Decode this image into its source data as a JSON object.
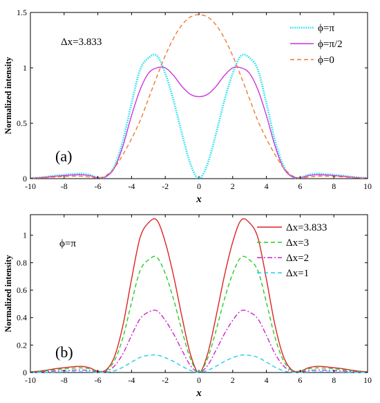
{
  "chart_data": [
    {
      "type": "line",
      "panel_label": "(a)",
      "annotation": "Δx=3.833",
      "xlabel": "x",
      "ylabel": "Normalized intensity",
      "xlim": [
        -10,
        10
      ],
      "ylim": [
        0,
        1.5
      ],
      "xticks": [
        -10,
        -8,
        -6,
        -4,
        -2,
        0,
        2,
        4,
        6,
        8,
        10
      ],
      "yticks": [
        0,
        0.5,
        1,
        1.5
      ],
      "ytick_labels": [
        "0",
        "0.5",
        "1",
        "1.5"
      ],
      "legend_position": "top-right",
      "x": [
        -10,
        -9.5,
        -9,
        -8.5,
        -8,
        -7.5,
        -7,
        -6.5,
        -6,
        -5.5,
        -5,
        -4.5,
        -4,
        -3.5,
        -3,
        -2.5,
        -2,
        -1.5,
        -1,
        -0.5,
        0,
        0.5,
        1,
        1.5,
        2,
        2.5,
        3,
        3.5,
        4,
        4.5,
        5,
        5.5,
        6,
        6.5,
        7,
        7.5,
        8,
        8.5,
        9,
        9.5,
        10
      ],
      "series": [
        {
          "name": "ϕ=π",
          "color": "#2ee0ee",
          "dash": "dotted",
          "values": [
            0.005,
            0.01,
            0.018,
            0.028,
            0.035,
            0.042,
            0.045,
            0.035,
            0.01,
            0.02,
            0.12,
            0.35,
            0.68,
            0.98,
            1.09,
            1.11,
            0.95,
            0.7,
            0.4,
            0.13,
            0,
            0.13,
            0.4,
            0.7,
            0.95,
            1.11,
            1.09,
            0.98,
            0.68,
            0.35,
            0.12,
            0.02,
            0.01,
            0.035,
            0.045,
            0.042,
            0.035,
            0.028,
            0.018,
            0.01,
            0.005
          ]
        },
        {
          "name": "ϕ=π/2",
          "color": "#cc33dd",
          "dash": "solid",
          "values": [
            0.004,
            0.008,
            0.014,
            0.022,
            0.028,
            0.033,
            0.035,
            0.028,
            0.008,
            0.02,
            0.1,
            0.3,
            0.57,
            0.8,
            0.95,
            1.0,
            1.0,
            0.93,
            0.83,
            0.76,
            0.74,
            0.76,
            0.83,
            0.93,
            1.0,
            1.0,
            0.95,
            0.8,
            0.57,
            0.3,
            0.1,
            0.02,
            0.008,
            0.028,
            0.035,
            0.033,
            0.028,
            0.022,
            0.014,
            0.008,
            0.004
          ]
        },
        {
          "name": "ϕ=0",
          "color": "#f07830",
          "dash": "dashed",
          "values": [
            0.004,
            0.006,
            0.01,
            0.015,
            0.02,
            0.022,
            0.022,
            0.015,
            0.005,
            0.03,
            0.1,
            0.22,
            0.36,
            0.52,
            0.72,
            0.92,
            1.11,
            1.27,
            1.39,
            1.46,
            1.48,
            1.46,
            1.39,
            1.27,
            1.11,
            0.92,
            0.72,
            0.52,
            0.36,
            0.22,
            0.1,
            0.03,
            0.005,
            0.015,
            0.022,
            0.022,
            0.02,
            0.015,
            0.01,
            0.006,
            0.004
          ]
        }
      ]
    },
    {
      "type": "line",
      "panel_label": "(b)",
      "annotation": "ϕ=π",
      "xlabel": "x",
      "ylabel": "Normalized intensity",
      "xlim": [
        -10,
        10
      ],
      "ylim": [
        0,
        1.15
      ],
      "xticks": [
        -10,
        -8,
        -6,
        -4,
        -2,
        0,
        2,
        4,
        6,
        8,
        10
      ],
      "yticks": [
        0,
        0.2,
        0.4,
        0.6,
        0.8,
        1
      ],
      "ytick_labels": [
        "0",
        "0.2",
        "0.4",
        "0.6",
        "0.8",
        "1"
      ],
      "legend_position": "top-right",
      "x": [
        -10,
        -9.5,
        -9,
        -8.5,
        -8,
        -7.5,
        -7,
        -6.5,
        -6,
        -5.5,
        -5,
        -4.5,
        -4,
        -3.5,
        -3,
        -2.5,
        -2,
        -1.5,
        -1,
        -0.5,
        0,
        0.5,
        1,
        1.5,
        2,
        2.5,
        3,
        3.5,
        4,
        4.5,
        5,
        5.5,
        6,
        6.5,
        7,
        7.5,
        8,
        8.5,
        9,
        9.5,
        10
      ],
      "series": [
        {
          "name": "Δx=3.833",
          "color": "#dd2222",
          "dash": "solid",
          "values": [
            0.005,
            0.01,
            0.018,
            0.028,
            0.035,
            0.042,
            0.045,
            0.035,
            0.01,
            0.02,
            0.12,
            0.35,
            0.68,
            0.98,
            1.09,
            1.11,
            0.95,
            0.7,
            0.4,
            0.13,
            0,
            0.13,
            0.4,
            0.7,
            0.95,
            1.11,
            1.09,
            0.98,
            0.68,
            0.35,
            0.12,
            0.02,
            0.01,
            0.035,
            0.045,
            0.042,
            0.035,
            0.028,
            0.018,
            0.01,
            0.005
          ]
        },
        {
          "name": "Δx=3",
          "color": "#22cc22",
          "dash": "dashed",
          "values": [
            0.004,
            0.008,
            0.014,
            0.021,
            0.027,
            0.032,
            0.034,
            0.027,
            0.008,
            0.015,
            0.09,
            0.26,
            0.51,
            0.74,
            0.82,
            0.84,
            0.72,
            0.53,
            0.3,
            0.1,
            0,
            0.1,
            0.3,
            0.53,
            0.72,
            0.84,
            0.82,
            0.74,
            0.51,
            0.26,
            0.09,
            0.015,
            0.008,
            0.027,
            0.034,
            0.032,
            0.027,
            0.021,
            0.014,
            0.008,
            0.004
          ]
        },
        {
          "name": "Δx=2",
          "color": "#cc22cc",
          "dash": "dashdot",
          "values": [
            0.002,
            0.004,
            0.007,
            0.011,
            0.014,
            0.017,
            0.018,
            0.014,
            0.004,
            0.008,
            0.05,
            0.14,
            0.27,
            0.39,
            0.44,
            0.45,
            0.38,
            0.28,
            0.16,
            0.05,
            0,
            0.05,
            0.16,
            0.28,
            0.38,
            0.45,
            0.44,
            0.39,
            0.27,
            0.14,
            0.05,
            0.008,
            0.004,
            0.014,
            0.018,
            0.017,
            0.014,
            0.011,
            0.007,
            0.004,
            0.002
          ]
        },
        {
          "name": "Δx=1",
          "color": "#22ccee",
          "dash": "dashed",
          "values": [
            0.001,
            0.001,
            0.002,
            0.003,
            0.004,
            0.005,
            0.005,
            0.004,
            0.001,
            0.002,
            0.013,
            0.04,
            0.076,
            0.11,
            0.125,
            0.127,
            0.108,
            0.08,
            0.045,
            0.015,
            0,
            0.015,
            0.045,
            0.08,
            0.108,
            0.127,
            0.125,
            0.11,
            0.076,
            0.04,
            0.013,
            0.002,
            0.001,
            0.004,
            0.005,
            0.005,
            0.004,
            0.003,
            0.002,
            0.001,
            0.001
          ]
        }
      ]
    }
  ]
}
